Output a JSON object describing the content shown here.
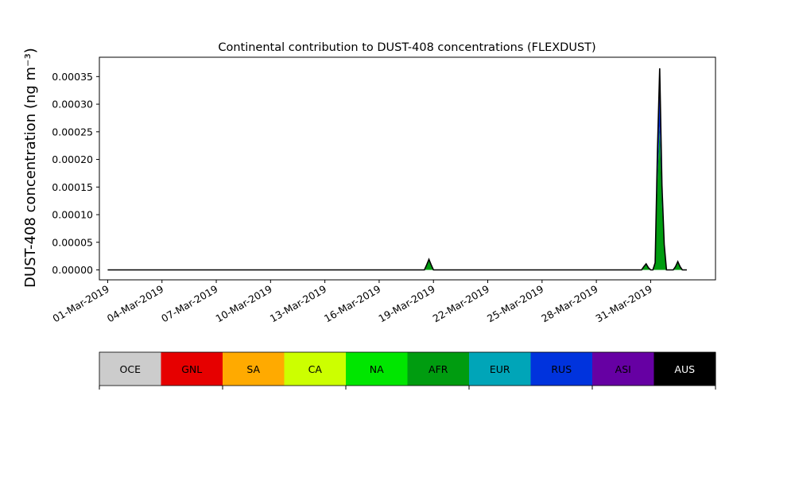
{
  "chart_data": {
    "type": "area",
    "title": "Continental contribution to DUST-408 concentrations (FLEXDUST)",
    "ylabel": "DUST-408 concentration (ng m⁻³)",
    "xlabel": "",
    "ylim": [
      -1.8e-05,
      0.000385
    ],
    "xlim": [
      "2019-02-28T13:00",
      "2019-04-03T14:00"
    ],
    "grid": false,
    "y_ticks": [
      0.0,
      5e-05,
      0.0001,
      0.00015,
      0.0002,
      0.00025,
      0.0003,
      0.00035
    ],
    "y_tick_labels": [
      "0.00000",
      "0.00005",
      "0.00010",
      "0.00015",
      "0.00020",
      "0.00025",
      "0.00030",
      "0.00035"
    ],
    "x_ticks": [
      "2019-03-01",
      "2019-03-04",
      "2019-03-07",
      "2019-03-10",
      "2019-03-13",
      "2019-03-16",
      "2019-03-19",
      "2019-03-22",
      "2019-03-25",
      "2019-03-28",
      "2019-03-31"
    ],
    "x_tick_labels": [
      "01-Mar-2019",
      "04-Mar-2019",
      "07-Mar-2019",
      "10-Mar-2019",
      "13-Mar-2019",
      "16-Mar-2019",
      "19-Mar-2019",
      "22-Mar-2019",
      "25-Mar-2019",
      "28-Mar-2019",
      "31-Mar-2019"
    ],
    "x": [
      "2019-03-01T00:00",
      "2019-03-18T12:00",
      "2019-03-18T15:00",
      "2019-03-18T18:00",
      "2019-03-18T21:00",
      "2019-03-19T00:00",
      "2019-03-30T12:00",
      "2019-03-30T15:00",
      "2019-03-30T18:00",
      "2019-03-30T21:00",
      "2019-03-31T00:00",
      "2019-03-31T03:00",
      "2019-03-31T06:00",
      "2019-03-31T09:00",
      "2019-03-31T12:00",
      "2019-03-31T15:00",
      "2019-03-31T18:00",
      "2019-03-31T21:00",
      "2019-04-01T00:00",
      "2019-04-01T06:00",
      "2019-04-01T09:00",
      "2019-04-01T12:00",
      "2019-04-01T15:00",
      "2019-04-01T18:00",
      "2019-04-02T00:00"
    ],
    "series": [
      {
        "name": "AFR",
        "color": "#009c10",
        "values": [
          0,
          0,
          9e-06,
          1.7e-05,
          9e-06,
          0,
          0,
          6e-06,
          9e-06,
          4e-06,
          0,
          0,
          1e-05,
          0.00016,
          0.00026,
          0.00012,
          4e-05,
          0,
          0,
          0,
          6e-06,
          1.3e-05,
          6e-06,
          0,
          0
        ]
      },
      {
        "name": "RUS",
        "color": "#0030e0",
        "values": [
          0,
          0,
          0,
          1e-06,
          0,
          0,
          0,
          0,
          1e-06,
          0,
          0,
          0,
          2e-06,
          5e-05,
          9e-05,
          3e-05,
          5e-06,
          0,
          0,
          0,
          0,
          1e-06,
          0,
          0,
          0
        ]
      },
      {
        "name": "AUS",
        "color": "#000000",
        "values": [
          0,
          0,
          0,
          1e-06,
          0,
          0,
          0,
          0,
          1e-06,
          0,
          0,
          0,
          1e-06,
          5e-06,
          1.5e-05,
          3e-06,
          1e-06,
          0,
          0,
          0,
          0,
          1e-06,
          0,
          0,
          0
        ]
      }
    ],
    "legend": {
      "placement": "bottom",
      "entries": [
        {
          "label": "OCE",
          "color": "#cccccc",
          "text_color": "#000000"
        },
        {
          "label": "GNL",
          "color": "#e60000",
          "text_color": "#000000"
        },
        {
          "label": "SA",
          "color": "#ffaa00",
          "text_color": "#000000"
        },
        {
          "label": "CA",
          "color": "#ccff00",
          "text_color": "#000000"
        },
        {
          "label": "NA",
          "color": "#00e600",
          "text_color": "#000000"
        },
        {
          "label": "AFR",
          "color": "#009c10",
          "text_color": "#000000"
        },
        {
          "label": "EUR",
          "color": "#00a5b8",
          "text_color": "#000000"
        },
        {
          "label": "RUS",
          "color": "#0033dd",
          "text_color": "#000000"
        },
        {
          "label": "ASI",
          "color": "#6600a3",
          "text_color": "#000000"
        },
        {
          "label": "AUS",
          "color": "#000000",
          "text_color": "#ffffff"
        }
      ]
    }
  }
}
